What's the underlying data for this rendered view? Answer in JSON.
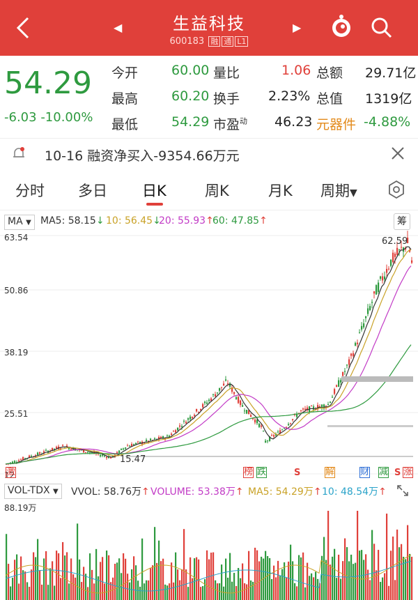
{
  "header": {
    "title": "生益科技",
    "code": "600183",
    "tags": [
      "融",
      "通",
      "L1"
    ]
  },
  "quote": {
    "price": "54.29",
    "change": "-6.03",
    "change_pct": "-10.00%",
    "fields": [
      {
        "label": "今开",
        "value": "60.00",
        "color": "green"
      },
      {
        "label": "最高",
        "value": "60.20",
        "color": "green"
      },
      {
        "label": "最低",
        "value": "54.29",
        "color": "green"
      }
    ],
    "fields2": [
      {
        "label": "量比",
        "value": "1.06",
        "color": "red"
      },
      {
        "label": "换手",
        "value": "2.23%",
        "color": "dark"
      },
      {
        "label": "市盈",
        "sup": "动",
        "value": "46.23",
        "color": "dark"
      }
    ],
    "fields3": [
      {
        "label": "总额",
        "value": "29.71亿"
      },
      {
        "label": "总值",
        "value": "1319亿"
      },
      {
        "label": "元器件",
        "value": "-4.88%"
      }
    ]
  },
  "news": {
    "text": "10-16 融资净买入-9354.66万元"
  },
  "tabs": [
    "分时",
    "多日",
    "日K",
    "周K",
    "月K",
    "周期"
  ],
  "active_tab": "日K",
  "ma_bar": {
    "button": "MA",
    "ma5": "MA5: 58.15",
    "ma10": "10: 56.45",
    "ma20": "20: 55.93",
    "ma60": "60: 47.85",
    "fuquan": "筹"
  },
  "y_axis": [
    "63.54",
    "50.86",
    "38.19",
    "25.51",
    "12"
  ],
  "annotations": {
    "high": "62.59",
    "low": "15.47"
  },
  "event_tags": [
    "激",
    "榜",
    "跌",
    "S",
    "解",
    "财",
    "减",
    "S",
    "涨"
  ],
  "vol_bar": {
    "button": "VOL-TDX",
    "vvol": "VVOL: 58.76万",
    "volume": "VOLUME: 53.38万",
    "ma5": "MA5: 54.29万",
    "ma10": "10: 48.54万"
  },
  "vol_max": "88.19万",
  "colors": {
    "up": "#e0403a",
    "down": "#2e9a3f",
    "header": "#e0403a",
    "ma5": "#333333",
    "ma10": "#c9a227",
    "ma20": "#c23bc6",
    "ma60": "#2e9a3f"
  }
}
